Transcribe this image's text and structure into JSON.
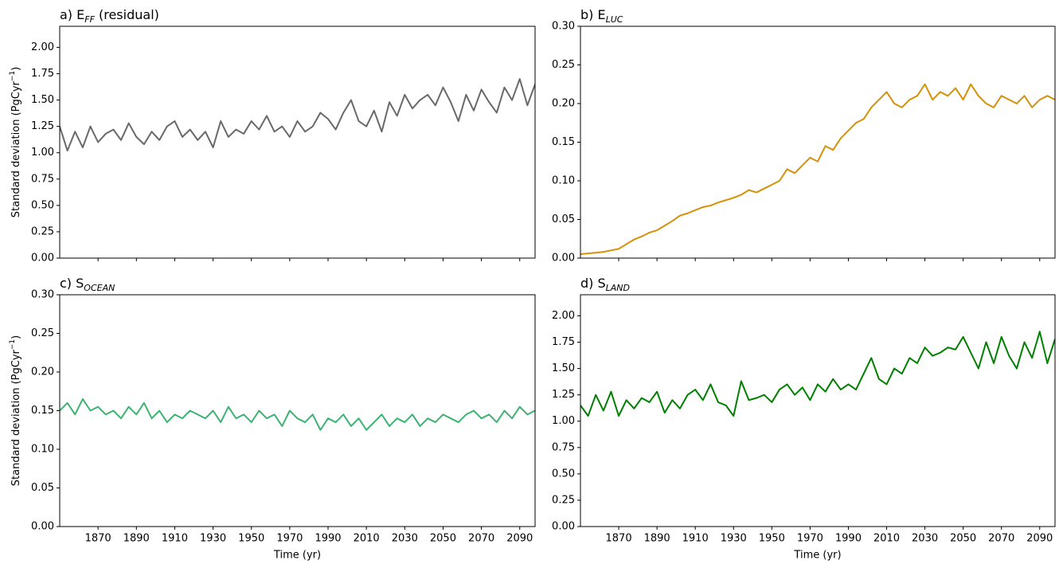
{
  "chart_data": [
    {
      "type": "line",
      "title": "a) E",
      "title_sub": "FF",
      "title_suffix": " (residual)",
      "ylabel": "Standard deviation (PgCyr",
      "ylabel_sup": "−1",
      "ylabel_end": ")",
      "color": "#696969",
      "x": [
        1850,
        1854,
        1858,
        1862,
        1866,
        1870,
        1874,
        1878,
        1882,
        1886,
        1890,
        1894,
        1898,
        1902,
        1906,
        1910,
        1914,
        1918,
        1922,
        1926,
        1930,
        1934,
        1938,
        1942,
        1946,
        1950,
        1954,
        1958,
        1962,
        1966,
        1970,
        1974,
        1978,
        1982,
        1986,
        1990,
        1994,
        1998,
        2002,
        2006,
        2010,
        2014,
        2018,
        2022,
        2026,
        2030,
        2034,
        2038,
        2042,
        2046,
        2050,
        2054,
        2058,
        2062,
        2066,
        2070,
        2074,
        2078,
        2082,
        2086,
        2090,
        2094,
        2098
      ],
      "values": [
        1.25,
        1.02,
        1.2,
        1.05,
        1.25,
        1.1,
        1.18,
        1.22,
        1.12,
        1.28,
        1.15,
        1.08,
        1.2,
        1.12,
        1.25,
        1.3,
        1.15,
        1.22,
        1.12,
        1.2,
        1.05,
        1.3,
        1.15,
        1.22,
        1.18,
        1.3,
        1.22,
        1.35,
        1.2,
        1.25,
        1.15,
        1.3,
        1.2,
        1.25,
        1.38,
        1.32,
        1.22,
        1.38,
        1.5,
        1.3,
        1.25,
        1.4,
        1.2,
        1.48,
        1.35,
        1.55,
        1.42,
        1.5,
        1.55,
        1.45,
        1.62,
        1.48,
        1.3,
        1.55,
        1.4,
        1.6,
        1.48,
        1.38,
        1.62,
        1.5,
        1.7,
        1.45,
        1.65
      ],
      "xlim": [
        1850,
        2098
      ],
      "xticks": [
        1870,
        1890,
        1910,
        1930,
        1950,
        1970,
        1990,
        2010,
        2030,
        2050,
        2070,
        2090
      ],
      "ylim": [
        0,
        2.2
      ],
      "yticks": [
        {
          "value": 0,
          "label": "0.00"
        },
        {
          "value": 0.25,
          "label": "0.25"
        },
        {
          "value": 0.5,
          "label": "0.50"
        },
        {
          "value": 0.75,
          "label": "0.75"
        },
        {
          "value": 1,
          "label": "1.00"
        },
        {
          "value": 1.25,
          "label": "1.25"
        },
        {
          "value": 1.5,
          "label": "1.50"
        },
        {
          "value": 1.75,
          "label": "1.75"
        },
        {
          "value": 2,
          "label": "2.00"
        }
      ]
    },
    {
      "type": "line",
      "title": "b) E",
      "title_sub": "LUC",
      "color": "#d4910a",
      "x": [
        1850,
        1854,
        1858,
        1862,
        1866,
        1870,
        1874,
        1878,
        1882,
        1886,
        1890,
        1894,
        1898,
        1902,
        1906,
        1910,
        1914,
        1918,
        1922,
        1926,
        1930,
        1934,
        1938,
        1942,
        1946,
        1950,
        1954,
        1958,
        1962,
        1966,
        1970,
        1974,
        1978,
        1982,
        1986,
        1990,
        1994,
        1998,
        2002,
        2006,
        2010,
        2014,
        2018,
        2022,
        2026,
        2030,
        2034,
        2038,
        2042,
        2046,
        2050,
        2054,
        2058,
        2062,
        2066,
        2070,
        2074,
        2078,
        2082,
        2086,
        2090,
        2094,
        2098
      ],
      "values": [
        0.005,
        0.006,
        0.007,
        0.008,
        0.01,
        0.012,
        0.018,
        0.024,
        0.028,
        0.033,
        0.036,
        0.042,
        0.048,
        0.055,
        0.058,
        0.062,
        0.066,
        0.068,
        0.072,
        0.075,
        0.078,
        0.082,
        0.088,
        0.085,
        0.09,
        0.095,
        0.1,
        0.115,
        0.11,
        0.12,
        0.13,
        0.125,
        0.145,
        0.14,
        0.155,
        0.165,
        0.175,
        0.18,
        0.195,
        0.205,
        0.215,
        0.2,
        0.195,
        0.205,
        0.21,
        0.225,
        0.205,
        0.215,
        0.21,
        0.22,
        0.205,
        0.225,
        0.21,
        0.2,
        0.195,
        0.21,
        0.205,
        0.2,
        0.21,
        0.195,
        0.205,
        0.21,
        0.205
      ],
      "xlim": [
        1850,
        2098
      ],
      "xticks": [
        1870,
        1890,
        1910,
        1930,
        1950,
        1970,
        1990,
        2010,
        2030,
        2050,
        2070,
        2090
      ],
      "ylim": [
        0,
        0.3
      ],
      "yticks": [
        {
          "value": 0,
          "label": "0.00"
        },
        {
          "value": 0.05,
          "label": "0.05"
        },
        {
          "value": 0.1,
          "label": "0.10"
        },
        {
          "value": 0.15,
          "label": "0.15"
        },
        {
          "value": 0.2,
          "label": "0.20"
        },
        {
          "value": 0.25,
          "label": "0.25"
        },
        {
          "value": 0.3,
          "label": "0.30"
        }
      ]
    },
    {
      "type": "line",
      "title": "c) S",
      "title_sub": "OCEAN",
      "ylabel": "Standard deviation (PgCyr",
      "ylabel_sup": "−1",
      "ylabel_end": ")",
      "xlabel": "Time (yr)",
      "color": "#3cb371",
      "x": [
        1850,
        1854,
        1858,
        1862,
        1866,
        1870,
        1874,
        1878,
        1882,
        1886,
        1890,
        1894,
        1898,
        1902,
        1906,
        1910,
        1914,
        1918,
        1922,
        1926,
        1930,
        1934,
        1938,
        1942,
        1946,
        1950,
        1954,
        1958,
        1962,
        1966,
        1970,
        1974,
        1978,
        1982,
        1986,
        1990,
        1994,
        1998,
        2002,
        2006,
        2010,
        2014,
        2018,
        2022,
        2026,
        2030,
        2034,
        2038,
        2042,
        2046,
        2050,
        2054,
        2058,
        2062,
        2066,
        2070,
        2074,
        2078,
        2082,
        2086,
        2090,
        2094,
        2098
      ],
      "values": [
        0.15,
        0.16,
        0.145,
        0.165,
        0.15,
        0.155,
        0.145,
        0.15,
        0.14,
        0.155,
        0.145,
        0.16,
        0.14,
        0.15,
        0.135,
        0.145,
        0.14,
        0.15,
        0.145,
        0.14,
        0.15,
        0.135,
        0.155,
        0.14,
        0.145,
        0.135,
        0.15,
        0.14,
        0.145,
        0.13,
        0.15,
        0.14,
        0.135,
        0.145,
        0.125,
        0.14,
        0.135,
        0.145,
        0.13,
        0.14,
        0.125,
        0.135,
        0.145,
        0.13,
        0.14,
        0.135,
        0.145,
        0.13,
        0.14,
        0.135,
        0.145,
        0.14,
        0.135,
        0.145,
        0.15,
        0.14,
        0.145,
        0.135,
        0.15,
        0.14,
        0.155,
        0.145,
        0.15
      ],
      "xlim": [
        1850,
        2098
      ],
      "xticks": [
        1870,
        1890,
        1910,
        1930,
        1950,
        1970,
        1990,
        2010,
        2030,
        2050,
        2070,
        2090
      ],
      "ylim": [
        0,
        0.3
      ],
      "yticks": [
        {
          "value": 0,
          "label": "0.00"
        },
        {
          "value": 0.05,
          "label": "0.05"
        },
        {
          "value": 0.1,
          "label": "0.10"
        },
        {
          "value": 0.15,
          "label": "0.15"
        },
        {
          "value": 0.2,
          "label": "0.20"
        },
        {
          "value": 0.25,
          "label": "0.25"
        },
        {
          "value": 0.3,
          "label": "0.30"
        }
      ]
    },
    {
      "type": "line",
      "title": "d) S",
      "title_sub": "LAND",
      "xlabel": "Time (yr)",
      "color": "#008000",
      "x": [
        1850,
        1854,
        1858,
        1862,
        1866,
        1870,
        1874,
        1878,
        1882,
        1886,
        1890,
        1894,
        1898,
        1902,
        1906,
        1910,
        1914,
        1918,
        1922,
        1926,
        1930,
        1934,
        1938,
        1942,
        1946,
        1950,
        1954,
        1958,
        1962,
        1966,
        1970,
        1974,
        1978,
        1982,
        1986,
        1990,
        1994,
        1998,
        2002,
        2006,
        2010,
        2014,
        2018,
        2022,
        2026,
        2030,
        2034,
        2038,
        2042,
        2046,
        2050,
        2054,
        2058,
        2062,
        2066,
        2070,
        2074,
        2078,
        2082,
        2086,
        2090,
        2094,
        2098
      ],
      "values": [
        1.15,
        1.05,
        1.25,
        1.1,
        1.28,
        1.05,
        1.2,
        1.12,
        1.22,
        1.18,
        1.28,
        1.08,
        1.2,
        1.12,
        1.25,
        1.3,
        1.2,
        1.35,
        1.18,
        1.15,
        1.05,
        1.38,
        1.2,
        1.22,
        1.25,
        1.18,
        1.3,
        1.35,
        1.25,
        1.32,
        1.2,
        1.35,
        1.28,
        1.4,
        1.3,
        1.35,
        1.3,
        1.45,
        1.6,
        1.4,
        1.35,
        1.5,
        1.45,
        1.6,
        1.55,
        1.7,
        1.62,
        1.65,
        1.7,
        1.68,
        1.8,
        1.65,
        1.5,
        1.75,
        1.55,
        1.8,
        1.62,
        1.5,
        1.75,
        1.6,
        1.85,
        1.55,
        1.78
      ],
      "xlim": [
        1850,
        2098
      ],
      "xticks": [
        1870,
        1890,
        1910,
        1930,
        1950,
        1970,
        1990,
        2010,
        2030,
        2050,
        2070,
        2090
      ],
      "ylim": [
        0,
        2.2
      ],
      "yticks": [
        {
          "value": 0,
          "label": "0.00"
        },
        {
          "value": 0.25,
          "label": "0.25"
        },
        {
          "value": 0.5,
          "label": "0.50"
        },
        {
          "value": 0.75,
          "label": "0.75"
        },
        {
          "value": 1,
          "label": "1.00"
        },
        {
          "value": 1.25,
          "label": "1.25"
        },
        {
          "value": 1.5,
          "label": "1.50"
        },
        {
          "value": 1.75,
          "label": "1.75"
        },
        {
          "value": 2,
          "label": "2.00"
        }
      ]
    }
  ]
}
